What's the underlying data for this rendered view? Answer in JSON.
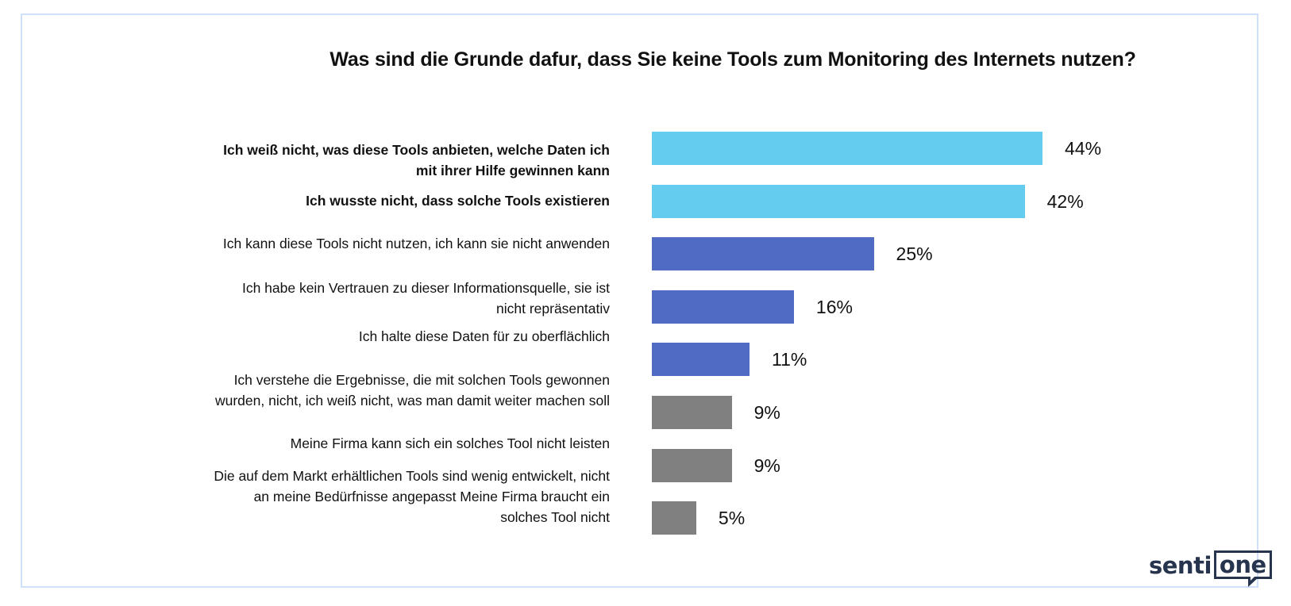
{
  "chart_data": {
    "type": "bar",
    "orientation": "horizontal",
    "title": "Was sind die Grunde dafur, dass Sie keine Tools zum Monitoring des Internets nutzen?",
    "xlabel": "",
    "ylabel": "",
    "unit": "%",
    "xlim": [
      0,
      44
    ],
    "grid": false,
    "legend": "none",
    "categories": [
      "Ich weiß nicht, was diese Tools anbieten, welche Daten ich mit ihrer Hilfe gewinnen kann",
      "Ich wusste nicht, dass solche Tools existieren",
      "Ich kann diese Tools nicht nutzen, ich kann sie nicht anwenden",
      "Ich habe kein Vertrauen zu dieser Informationsquelle, sie ist nicht repräsentativ",
      "Ich halte diese Daten für zu oberflächlich",
      "Ich verstehe die Ergebnisse, die mit solchen Tools gewonnen wurden, nicht, ich weiß nicht, was man damit weiter machen soll",
      "Meine Firma kann sich ein solches Tool nicht leisten",
      "Die auf dem Markt erhältlichen Tools sind wenig entwickelt, nicht an meine Bedürfnisse angepasst Meine Firma braucht ein solches Tool nicht"
    ],
    "values": [
      44,
      42,
      25,
      16,
      11,
      9,
      9,
      5
    ],
    "data_labels": [
      "44%",
      "42%",
      "25%",
      "16%",
      "11%",
      "9%",
      "9%",
      "5%"
    ],
    "bar_colors": [
      "#63ccef",
      "#63ccef",
      "#4f6bc4",
      "#4f6bc4",
      "#4f6bc4",
      "#808080",
      "#808080",
      "#808080"
    ],
    "bold_categories": [
      true,
      true,
      false,
      false,
      false,
      false,
      false,
      false
    ],
    "label_lines": [
      [
        "Ich weiß nicht, was diese Tools anbieten, welche Daten ich",
        "mit ihrer Hilfe gewinnen kann"
      ],
      [
        "Ich wusste nicht, dass solche Tools existieren"
      ],
      [
        "Ich kann diese Tools nicht nutzen, ich kann sie nicht anwenden"
      ],
      [
        "Ich habe kein Vertrauen zu dieser Informationsquelle, sie ist",
        "nicht repräsentativ"
      ],
      [
        "Ich halte diese Daten für zu oberflächlich"
      ],
      [
        "Ich verstehe die Ergebnisse, die mit solchen Tools gewonnen",
        "wurden, nicht, ich weiß nicht, was man damit weiter machen soll"
      ],
      [
        "Meine Firma kann sich ein solches Tool nicht leisten"
      ],
      [
        "Die auf dem Markt erhältlichen Tools sind wenig entwickelt, nicht",
        "an meine Bedürfnisse angepasst Meine Firma braucht ein",
        "solches Tool nicht"
      ]
    ]
  },
  "logo": {
    "part1": "senti",
    "part2": "one"
  }
}
